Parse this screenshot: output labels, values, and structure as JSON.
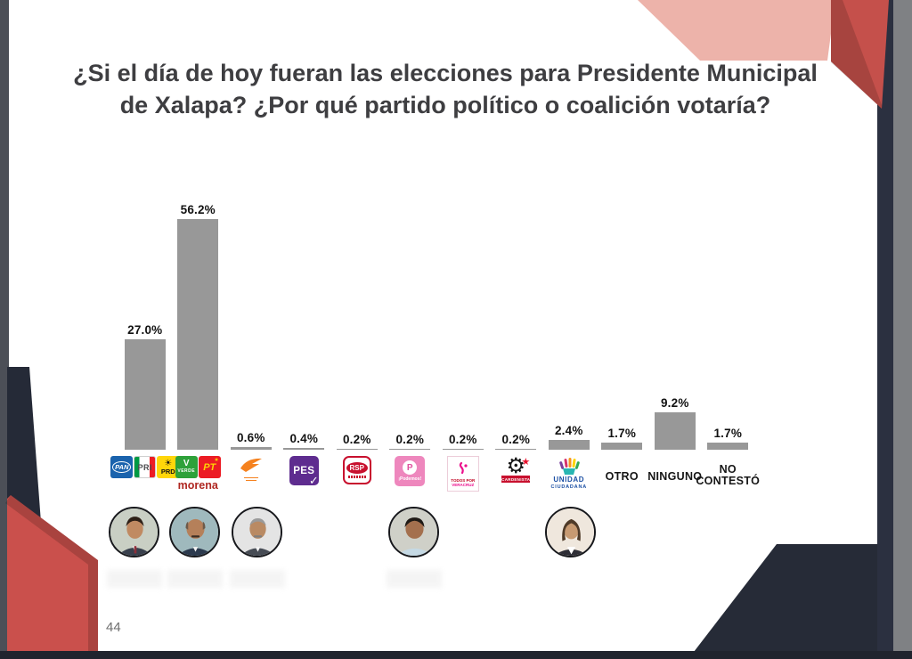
{
  "slide": {
    "title_line1": "¿Si el día de hoy fueran las elecciones para Presidente Municipal",
    "title_line2": "de Xalapa? ¿Por qué partido político o coalición votaría?",
    "page_number": "44",
    "accent_colors": {
      "pink": "#edb3aa",
      "red": "#c24c48",
      "navy": "#262b37",
      "bar_gray": "#989898"
    }
  },
  "chart_data": {
    "type": "bar",
    "title": "¿Si el día de hoy fueran las elecciones para Presidente Municipal de Xalapa? ¿Por qué partido político o coalición votaría?",
    "categories": [
      "PAN-PRI-PRD",
      "VERDE-PT-morena",
      "Movimiento Ciudadano",
      "PES",
      "RSP",
      "¡Podemos!",
      "Todos por Veracruz",
      "Cardenista",
      "Unidad Ciudadana",
      "OTRO",
      "NINGUNO",
      "NO CONTESTÓ"
    ],
    "values": [
      27.0,
      56.2,
      0.6,
      0.4,
      0.2,
      0.2,
      0.2,
      0.2,
      2.4,
      1.7,
      9.2,
      1.7
    ],
    "value_labels": [
      "27.0%",
      "56.2%",
      "0.6%",
      "0.4%",
      "0.2%",
      "0.2%",
      "0.2%",
      "0.2%",
      "2.4%",
      "1.7%",
      "9.2%",
      "1.7%"
    ],
    "bar_color": "#989898",
    "xlabel": "",
    "ylabel": "",
    "ylim": [
      0,
      60
    ],
    "grid": false,
    "legend_position": "none"
  },
  "logos": {
    "pan": "PAN",
    "pri": "PRI",
    "prd": "PRD",
    "verde": "VERDE",
    "pt": "PT",
    "morena": "morena",
    "pes": "PES",
    "rsp": "RSP",
    "podemos_p": "P",
    "podemos": "¡Podemos!",
    "todos_line1": "TODOS POR",
    "todos_line2": "VERACRUZ",
    "cardenista": "CARDENISTA",
    "unidad_line1": "UNIDAD",
    "unidad_line2": "CIUDADANA"
  },
  "category_labels": {
    "otro": "OTRO",
    "ninguno": "NINGUNO",
    "no_contesto_line1": "NO",
    "no_contesto_line2": "CONTESTÓ"
  }
}
